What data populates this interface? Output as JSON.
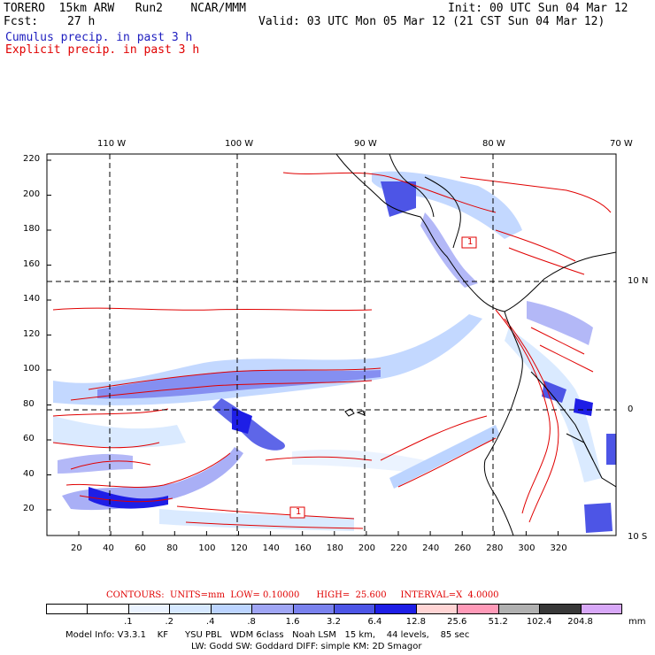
{
  "header": {
    "model": "TORERO  15km ARW   Run2    NCAR/MMM",
    "init": "Init: 00 UTC Sun 04 Mar 12",
    "fcst_label": "Fcst:",
    "fcst_value": "27 h",
    "valid": "Valid: 03 UTC Mon 05 Mar 12 (21 CST Sun 04 Mar 12)",
    "line_cumulus": "Cumulus precip. in past 3 h",
    "line_explicit": "Explicit precip. in past 3 h"
  },
  "colors": {
    "cumulus_text": "#2020c0",
    "explicit_text": "#e00000",
    "land_outline": "#000000",
    "contour": "#e00000"
  },
  "map": {
    "lon_labels": [
      "110 W",
      "100 W",
      "90 W",
      "80 W",
      "70 W"
    ],
    "lat_labels": [
      "10 N",
      "0",
      "10 S"
    ],
    "y_ticks": [
      "220",
      "200",
      "180",
      "160",
      "140",
      "120",
      "100",
      "80",
      "60",
      "40",
      "20"
    ],
    "x_ticks": [
      "20",
      "40",
      "60",
      "80",
      "100",
      "120",
      "140",
      "160",
      "180",
      "200",
      "220",
      "240",
      "260",
      "280",
      "300",
      "320"
    ],
    "contour_box_labels": [
      "1",
      "1"
    ]
  },
  "legend": {
    "contours_text": "CONTOURS:  UNITS=mm  LOW= 0.10000      HIGH=  25.600     INTERVAL=X  4.0000",
    "bins": [
      {
        "color": "#ffffff"
      },
      {
        "color": "#ffffff"
      },
      {
        "color": "#ebf3ff"
      },
      {
        "color": "#d6e8ff"
      },
      {
        "color": "#bcd4ff"
      },
      {
        "color": "#a0a6f5"
      },
      {
        "color": "#7a82ee"
      },
      {
        "color": "#4d55e6"
      },
      {
        "color": "#1e1ee6"
      },
      {
        "color": "#ffd4d4"
      },
      {
        "color": "#ff9ab8"
      },
      {
        "color": "#b0b0b0"
      },
      {
        "color": "#383838"
      },
      {
        "color": "#d8a8f8"
      }
    ],
    "tick_labels": [
      ".1",
      ".2",
      ".4",
      ".8",
      "1.6",
      "3.2",
      "6.4",
      "12.8",
      "25.6",
      "51.2",
      "102.4",
      "204.8"
    ],
    "units": "mm"
  },
  "model_info": {
    "line1": "Model Info: V3.3.1    KF      YSU PBL   WDM 6class   Noah LSM   15 km,    44 levels,    85 sec",
    "line2": "LW: Godd SW: Goddard DIFF: simple KM: 2D Smagor"
  }
}
